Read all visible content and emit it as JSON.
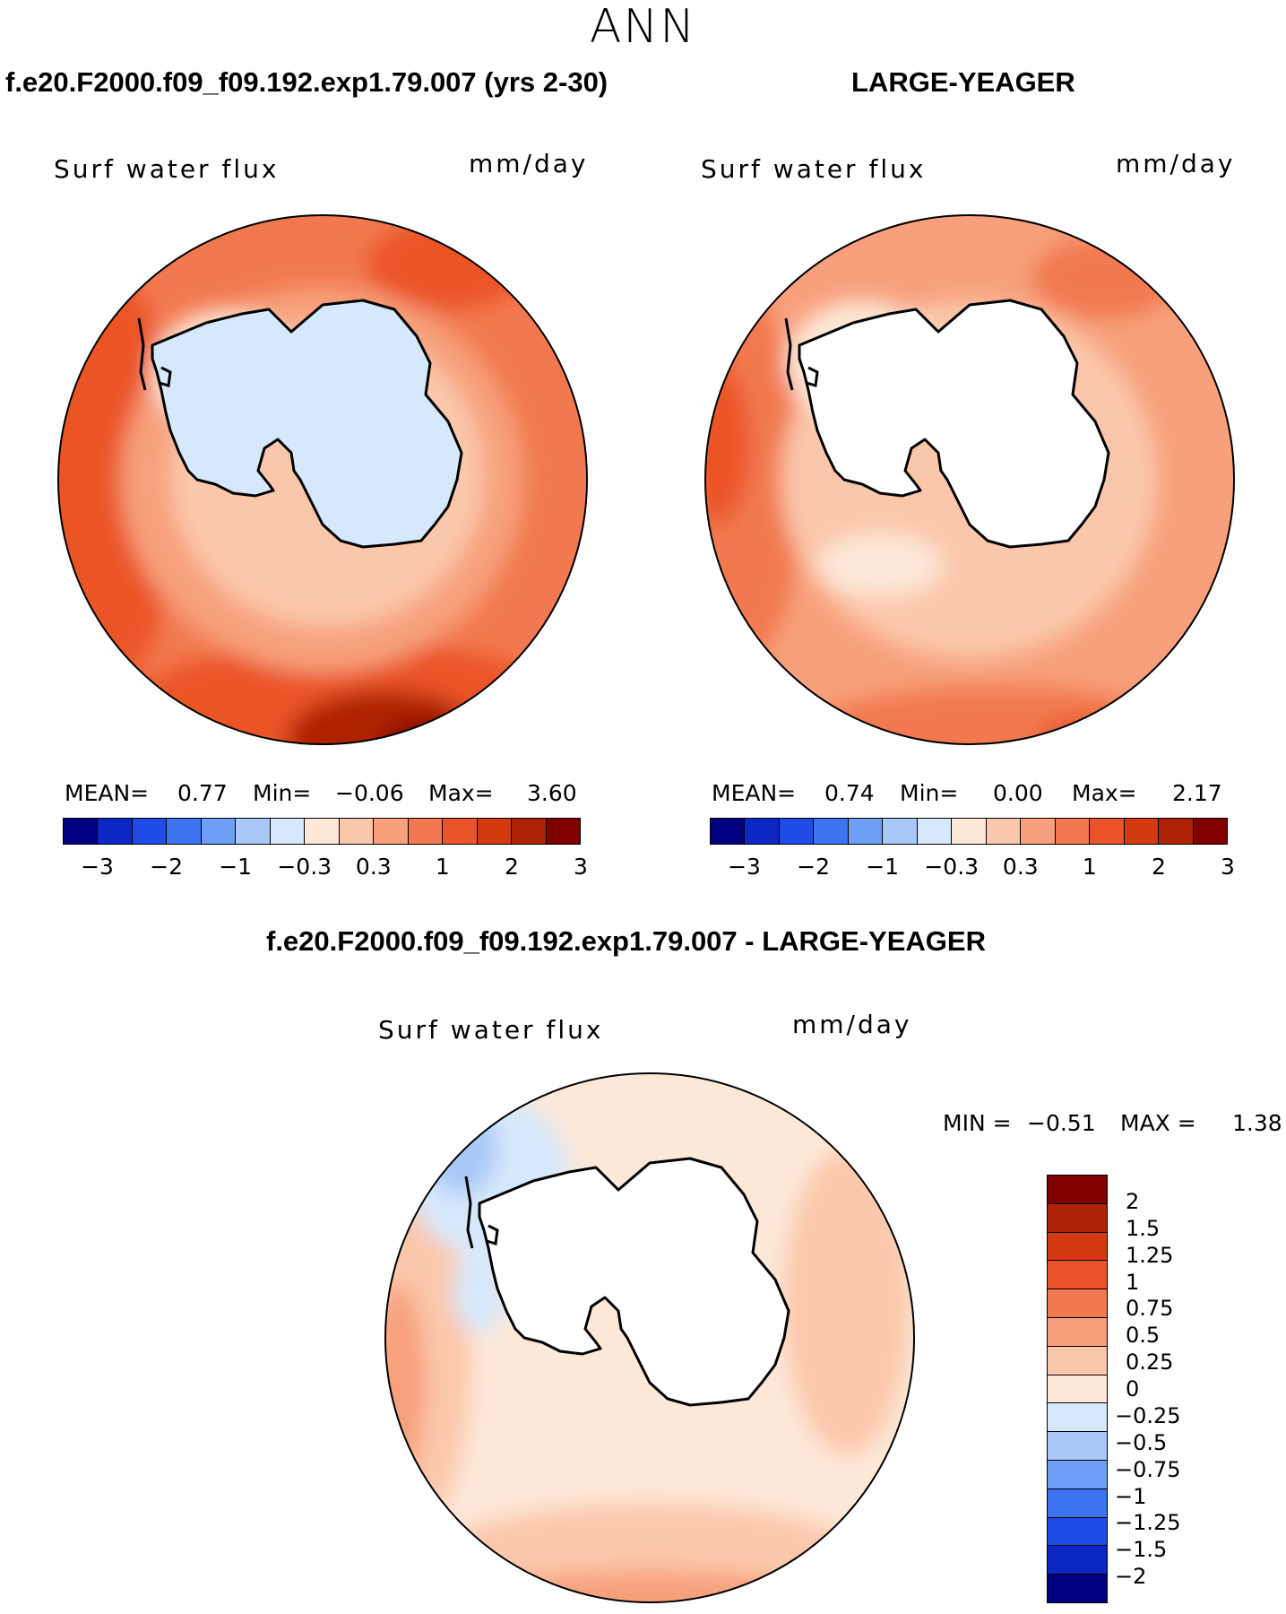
{
  "season": "ANN",
  "colors": {
    "abs_scale": [
      "#000080",
      "#0d27c4",
      "#1f4be6",
      "#3b73f0",
      "#6f9ff5",
      "#a8c8f7",
      "#d6e8fb",
      "#fde8d8",
      "#fbc7aa",
      "#f7a07b",
      "#f2794f",
      "#eb5428",
      "#d43a10",
      "#ae2206",
      "#800000"
    ],
    "diff_scale": [
      "#000080",
      "#0d27c4",
      "#1f4be6",
      "#3b73f0",
      "#6f9ff5",
      "#a8c8f7",
      "#d6e8fb",
      "#fde8d8",
      "#fbc7aa",
      "#f7a07b",
      "#f2794f",
      "#eb5428",
      "#d43a10",
      "#ae2206",
      "#800000"
    ],
    "land": "#ffffff",
    "coast": "#000000"
  },
  "panels": [
    {
      "title": "f.e20.F2000.f09_f09.192.exp1.79.007 (yrs 2-30)",
      "variable": "Surf water flux",
      "units": "mm/day",
      "mean_label": "MEAN=",
      "mean": "0.77",
      "min_label": "Min=",
      "min": "−0.06",
      "max_label": "Max=",
      "max": "3.60",
      "ticks": [
        "−3",
        "−2",
        "−1",
        "−0.3",
        "0.3",
        "1",
        "2",
        "3"
      ],
      "continent_fill": "#d6e8fb"
    },
    {
      "title": "LARGE-YEAGER",
      "variable": "Surf water flux",
      "units": "mm/day",
      "mean_label": "MEAN=",
      "mean": "0.74",
      "min_label": "Min=",
      "min": "0.00",
      "max_label": "Max=",
      "max": "2.17",
      "ticks": [
        "−3",
        "−2",
        "−1",
        "−0.3",
        "0.3",
        "1",
        "2",
        "3"
      ],
      "continent_fill": "#ffffff"
    }
  ],
  "difference": {
    "title": "f.e20.F2000.f09_f09.192.exp1.79.007 - LARGE-YEAGER",
    "variable": "Surf water flux",
    "units": "mm/day",
    "min_label": "MIN =",
    "min": "−0.51",
    "max_label": "MAX =",
    "max": "1.38",
    "ticks": [
      "2",
      "1.5",
      "1.25",
      "1",
      "0.75",
      "0.5",
      "0.25",
      "0",
      "−0.25",
      "−0.5",
      "−0.75",
      "−1",
      "−1.25",
      "−1.5",
      "−2"
    ],
    "continent_fill": "#ffffff"
  }
}
